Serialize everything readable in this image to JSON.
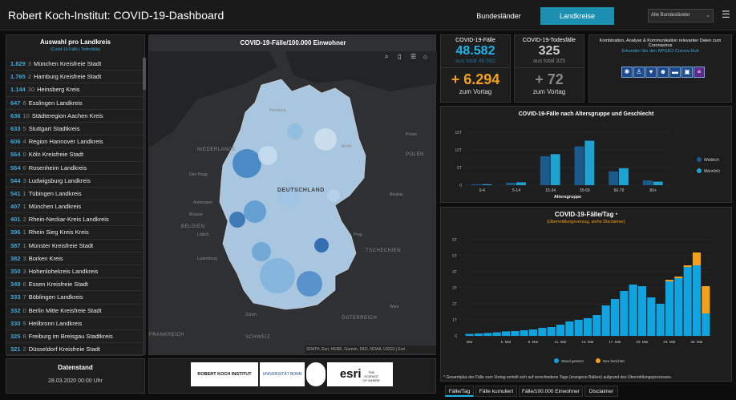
{
  "header": {
    "title": "Robert Koch-Institut: COVID-19-Dashboard",
    "tab_bundeslaender": "Bundesländer",
    "tab_landkreise": "Landkreise",
    "filter_value": "Alle Bundesländer",
    "menu_icon": "hamburger-icon"
  },
  "list": {
    "title": "Auswahl pro Landkreis",
    "subtitle": "(Covid-19-Fälle | Todesfälle)",
    "items": [
      {
        "value": "1.829",
        "rank": "3",
        "name": "München Kreisfreie Stadt"
      },
      {
        "value": "1.765",
        "rank": "2",
        "name": "Hamburg Kreisfreie Stadt"
      },
      {
        "value": "1.144",
        "rank": "30",
        "name": "Heinsberg Kreis"
      },
      {
        "value": "647",
        "rank": "6",
        "name": "Esslingen Landkreis"
      },
      {
        "value": "636",
        "rank": "10",
        "name": "Städteregion Aachen Kreis"
      },
      {
        "value": "633",
        "rank": "5",
        "name": "Stuttgart Stadtkreis"
      },
      {
        "value": "606",
        "rank": "4",
        "name": "Region Hannover Landkreis"
      },
      {
        "value": "564",
        "rank": "0",
        "name": "Köln Kreisfreie Stadt"
      },
      {
        "value": "564",
        "rank": "6",
        "name": "Rosenheim Landkreis"
      },
      {
        "value": "544",
        "rank": "3",
        "name": "Ludwigsburg Landkreis"
      },
      {
        "value": "541",
        "rank": "1",
        "name": "Tübingen Landkreis"
      },
      {
        "value": "407",
        "rank": "1",
        "name": "München Landkreis"
      },
      {
        "value": "401",
        "rank": "2",
        "name": "Rhein-Neckar-Kreis Landkreis"
      },
      {
        "value": "396",
        "rank": "1",
        "name": "Rhein Sieg Kreis Kreis"
      },
      {
        "value": "387",
        "rank": "1",
        "name": "Münster Kreisfreie Stadt"
      },
      {
        "value": "382",
        "rank": "3",
        "name": "Borken Kreis"
      },
      {
        "value": "350",
        "rank": "3",
        "name": "Hohenlohekreis Landkreis"
      },
      {
        "value": "349",
        "rank": "6",
        "name": "Essen Kreisfreie Stadt"
      },
      {
        "value": "333",
        "rank": "7",
        "name": "Böblingen Landkreis"
      },
      {
        "value": "332",
        "rank": "0",
        "name": "Berlin Mitte Kreisfreie Stadt"
      },
      {
        "value": "330",
        "rank": "5",
        "name": "Heilbronn Landkreis"
      },
      {
        "value": "325",
        "rank": "8",
        "name": "Freiburg im Breisgau Stadtkreis"
      },
      {
        "value": "321",
        "rank": "2",
        "name": "Düsseldorf Kreisfreie Stadt"
      }
    ]
  },
  "map": {
    "title": "COVID-19-Fälle/100.000 Einwohner",
    "labels": [
      "DEUTSCHLAND",
      "NIEDERLANDE",
      "BELGIEN",
      "ÖSTERREICH",
      "TSCHECHIEN",
      "POLEN",
      "SCHWEIZ",
      "FRANKREICH",
      "Prag",
      "Den Haag",
      "Antwerpen",
      "Brüssel",
      "Lüttich",
      "Luxemburg",
      "Posen",
      "Wien",
      "Zürich",
      "Hamburg",
      "Berlin",
      "Breslau"
    ],
    "attribution": "SDATH, Esri, HERE, Garmin, FAO, NOAA, USGS | Esri",
    "tool_icons": [
      "search-icon",
      "bookmark-icon",
      "layers-icon",
      "home-icon"
    ]
  },
  "stats": {
    "cases_label": "COVID-19-Fälle",
    "cases_value": "48.582",
    "cases_total": "aus total 48.582",
    "cases_delta": "+ 6.294",
    "cases_delta_label": "zum Vortag",
    "deaths_label": "COVID-19-Todesfälle",
    "deaths_value": "325",
    "deaths_total": "aus total 325",
    "deaths_delta": "+ 72",
    "deaths_delta_label": "zum Vortag"
  },
  "info": {
    "text": "Kombination, Analyse & Kommunikation relevanter Daten zum Coronavirus",
    "link": "Erkunden Sie den NPGEO Corona Hub",
    "icons": [
      "virus-icon",
      "person-icon",
      "health-icon",
      "mask-icon",
      "bed-icon",
      "car-icon",
      "document-icon"
    ]
  },
  "age_chart": {
    "title": "COVID-19-Fälle nach Altersgruppe und Geschlecht",
    "legend_w": "Weiblich",
    "legend_m": "Männlich",
    "xlabel": "Altersgruppe",
    "yticks": [
      "15T",
      "10T",
      "5T",
      "0"
    ]
  },
  "daily_chart": {
    "title": "COVID-19-Fälle/Tag",
    "title_suffix": "*",
    "subtitle": "(Übermittlungsverzug, siehe Disclaimer)",
    "legend_stand": "Stand gestern",
    "legend_neu": "Neu berichtet",
    "yticks": [
      "6T",
      "5T",
      "4T",
      "3T",
      "2T",
      "1T",
      "0"
    ],
    "xticks": [
      "Mar",
      "5. Mär",
      "8. Mär",
      "11. Mär",
      "14. Mär",
      "17. Mär",
      "20. Mär",
      "23. Mär",
      "26. Mär"
    ],
    "footnote": "* Gesamtplus der Fälle zum Vortag verteilt sich auf verschiedene Tage (orangene Balken) aufgrund des Übermittlungsprozesses."
  },
  "datenstand": {
    "title": "Datenstand",
    "value": "28.03.2020 00:00 Uhr"
  },
  "logos": [
    "ROBERT KOCH INSTITUT",
    "UNIVERSITÄT BONN",
    "esri",
    "THE SCIENCE OF WHERE"
  ],
  "bottom_tabs": [
    "Fälle/Tag",
    "Fälle kumuliert",
    "Fälle/100.000 Einwohner",
    "Disclaimer"
  ],
  "chart_data": [
    {
      "type": "bar",
      "title": "COVID-19-Fälle nach Altersgruppe und Geschlecht",
      "xlabel": "Altersgruppe",
      "ylabel": "",
      "categories": [
        "0-4",
        "5-14",
        "15-34",
        "35-59",
        "60-79",
        "80+"
      ],
      "series": [
        {
          "name": "Weiblich",
          "values": [
            250,
            700,
            8200,
            11000,
            3900,
            1350
          ]
        },
        {
          "name": "Männlich",
          "values": [
            260,
            800,
            8800,
            12600,
            4800,
            1000
          ]
        }
      ],
      "ylim": [
        0,
        15000
      ],
      "legend": "right"
    },
    {
      "type": "bar",
      "title": "COVID-19-Fälle/Tag",
      "xlabel": "",
      "ylabel": "",
      "categories": [
        "Mar",
        "2",
        "3",
        "4",
        "5. Mär",
        "6",
        "7",
        "8. Mär",
        "9",
        "10",
        "11. Mär",
        "12",
        "13",
        "14. Mär",
        "15",
        "16",
        "17. Mär",
        "18",
        "19",
        "20. Mär",
        "21",
        "22",
        "23. Mär",
        "24",
        "25",
        "26. Mär",
        "27"
      ],
      "series": [
        {
          "name": "Stand gestern",
          "values": [
            120,
            150,
            180,
            220,
            280,
            300,
            350,
            400,
            500,
            550,
            700,
            900,
            1000,
            1100,
            1300,
            1900,
            2300,
            2800,
            3200,
            3100,
            2400,
            2000,
            3400,
            3600,
            4300,
            4400,
            1400
          ]
        },
        {
          "name": "Neu berichtet",
          "values": [
            0,
            0,
            0,
            0,
            0,
            0,
            0,
            0,
            0,
            0,
            0,
            0,
            0,
            0,
            0,
            0,
            0,
            0,
            0,
            0,
            0,
            0,
            100,
            100,
            100,
            800,
            1700
          ]
        }
      ],
      "ylim": [
        0,
        6000
      ],
      "legend": "bottom"
    }
  ]
}
